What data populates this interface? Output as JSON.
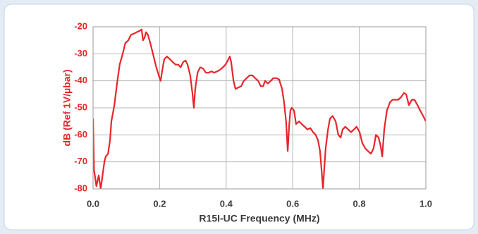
{
  "chart_data": {
    "type": "line",
    "x_label": "R15I-UC Frequency (MHz)",
    "y_label": "dB (Ref 1V/µbar)",
    "color": "#e8252b",
    "grid": true,
    "xlim": [
      0,
      1
    ],
    "ylim": [
      -80,
      -20
    ],
    "xticks": [
      {
        "value": 0,
        "label": "0.0"
      },
      0.2,
      0.4,
      0.6,
      0.8,
      {
        "value": 1,
        "label": "1.0"
      }
    ],
    "yticks": [
      -20,
      -30,
      -40,
      -50,
      -60,
      -70,
      -80
    ],
    "x": [
      0,
      0.003,
      0.01,
      0.017,
      0.023,
      0.034,
      0.038,
      0.045,
      0.051,
      0.055,
      0.064,
      0.072,
      0.08,
      0.089,
      0.097,
      0.106,
      0.114,
      0.123,
      0.131,
      0.14,
      0.146,
      0.15,
      0.155,
      0.159,
      0.165,
      0.174,
      0.182,
      0.19,
      0.2,
      0.203,
      0.208,
      0.214,
      0.222,
      0.231,
      0.239,
      0.248,
      0.256,
      0.263,
      0.271,
      0.278,
      0.284,
      0.292,
      0.299,
      0.303,
      0.307,
      0.314,
      0.322,
      0.331,
      0.339,
      0.347,
      0.356,
      0.364,
      0.373,
      0.381,
      0.39,
      0.398,
      0.407,
      0.411,
      0.415,
      0.422,
      0.428,
      0.436,
      0.445,
      0.453,
      0.462,
      0.47,
      0.479,
      0.487,
      0.496,
      0.504,
      0.511,
      0.517,
      0.525,
      0.534,
      0.542,
      0.551,
      0.559,
      0.568,
      0.574,
      0.58,
      0.585,
      0.589,
      0.593,
      0.597,
      0.604,
      0.61,
      0.619,
      0.627,
      0.636,
      0.644,
      0.653,
      0.661,
      0.669,
      0.676,
      0.682,
      0.686,
      0.691,
      0.695,
      0.699,
      0.706,
      0.712,
      0.72,
      0.729,
      0.737,
      0.744,
      0.75,
      0.758,
      0.767,
      0.775,
      0.784,
      0.792,
      0.801,
      0.809,
      0.818,
      0.826,
      0.835,
      0.843,
      0.85,
      0.858,
      0.864,
      0.869,
      0.875,
      0.883,
      0.892,
      0.9,
      0.909,
      0.917,
      0.926,
      0.934,
      0.941,
      0.949,
      0.958,
      0.966,
      0.975,
      0.983,
      0.992,
      1.0
    ],
    "values": [
      -54,
      -73,
      -79,
      -75,
      -80,
      -70,
      -68,
      -67,
      -62,
      -55,
      -49,
      -41,
      -34,
      -30,
      -26,
      -25,
      -23,
      -22.5,
      -22,
      -21.5,
      -21,
      -25,
      -24,
      -22,
      -23,
      -27,
      -31,
      -35,
      -39,
      -40,
      -36,
      -32,
      -31,
      -32,
      -33,
      -34,
      -34,
      -35,
      -33,
      -32.5,
      -34,
      -38,
      -45,
      -50,
      -43,
      -37,
      -35,
      -35.5,
      -37,
      -37,
      -36.5,
      -37,
      -36.5,
      -36,
      -35,
      -34,
      -32,
      -31,
      -33,
      -40,
      -43,
      -42.5,
      -42,
      -40,
      -39,
      -38,
      -38,
      -39,
      -40,
      -42,
      -42,
      -40,
      -41,
      -40,
      -39,
      -39,
      -39.5,
      -43,
      -48,
      -55,
      -66,
      -57,
      -51,
      -50,
      -51,
      -56,
      -55,
      -56,
      -57,
      -58,
      -57.5,
      -59,
      -60,
      -62,
      -66,
      -72,
      -80,
      -72,
      -65,
      -58,
      -54,
      -53,
      -55,
      -60,
      -61,
      -58,
      -57,
      -58,
      -59,
      -58,
      -57,
      -59,
      -63,
      -65,
      -66,
      -67,
      -65,
      -60,
      -61,
      -64,
      -68,
      -58,
      -51,
      -48,
      -47,
      -47,
      -47,
      -46,
      -44.5,
      -45,
      -49,
      -47,
      -47,
      -49,
      -51,
      -53,
      -55
    ]
  }
}
